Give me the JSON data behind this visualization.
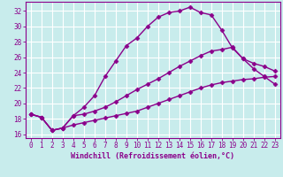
{
  "xlabel": "Windchill (Refroidissement éolien,°C)",
  "background_color": "#c8ecec",
  "line_color": "#8b008b",
  "grid_color": "#ffffff",
  "xlim": [
    -0.5,
    23.5
  ],
  "ylim": [
    15.5,
    33.2
  ],
  "xticks": [
    0,
    1,
    2,
    3,
    4,
    5,
    6,
    7,
    8,
    9,
    10,
    11,
    12,
    13,
    14,
    15,
    16,
    17,
    18,
    19,
    20,
    21,
    22,
    23
  ],
  "yticks": [
    16,
    18,
    20,
    22,
    24,
    26,
    28,
    30,
    32
  ],
  "line1_x": [
    0,
    1,
    2,
    3,
    4,
    5,
    6,
    7,
    8,
    9,
    10,
    11,
    12,
    13,
    14,
    15,
    16,
    17,
    18,
    19,
    20,
    21,
    22,
    23
  ],
  "line1_y": [
    18.6,
    18.2,
    16.5,
    16.8,
    18.4,
    19.5,
    21.0,
    23.5,
    25.5,
    27.5,
    28.5,
    30.0,
    31.2,
    31.8,
    32.0,
    32.5,
    31.8,
    31.5,
    29.5,
    27.2,
    25.8,
    24.5,
    23.5,
    22.5
  ],
  "line2_x": [
    0,
    1,
    2,
    3,
    4,
    5,
    6,
    7,
    8,
    9,
    10,
    11,
    12,
    13,
    14,
    15,
    16,
    17,
    18,
    19,
    20,
    21,
    22,
    23
  ],
  "line2_y": [
    18.6,
    18.2,
    16.5,
    16.8,
    18.4,
    18.6,
    19.0,
    19.5,
    20.2,
    21.0,
    21.8,
    22.5,
    23.2,
    24.0,
    24.8,
    25.5,
    26.2,
    26.8,
    27.0,
    27.3,
    25.8,
    25.2,
    24.8,
    24.2
  ],
  "line3_x": [
    0,
    1,
    2,
    3,
    4,
    5,
    6,
    7,
    8,
    9,
    10,
    11,
    12,
    13,
    14,
    15,
    16,
    17,
    18,
    19,
    20,
    21,
    22,
    23
  ],
  "line3_y": [
    18.6,
    18.2,
    16.5,
    16.8,
    17.2,
    17.5,
    17.8,
    18.1,
    18.4,
    18.7,
    19.0,
    19.5,
    20.0,
    20.5,
    21.0,
    21.5,
    22.0,
    22.4,
    22.7,
    22.9,
    23.1,
    23.2,
    23.4,
    23.5
  ],
  "marker": "D",
  "marker_size": 2.5,
  "line_width": 1.0,
  "tick_fontsize": 5.5,
  "xlabel_fontsize": 6.0
}
